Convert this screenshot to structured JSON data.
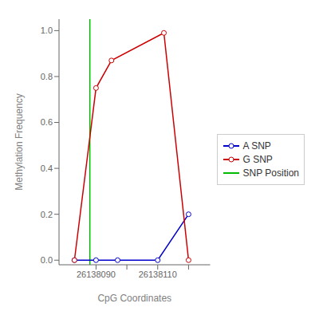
{
  "chart_data": {
    "type": "line",
    "xlabel": "CpG Coordinates",
    "ylabel": "Methylation Frequency",
    "series": [
      {
        "name": "A SNP",
        "color": "#0000cc",
        "marker": "o",
        "x": [
          26138083,
          26138090,
          26138097,
          26138110,
          26138120
        ],
        "values": [
          0.0,
          0.0,
          0.0,
          0.0,
          0.2
        ]
      },
      {
        "name": "G SNP",
        "color": "#cc0000",
        "marker": "o",
        "x": [
          26138083,
          26138090,
          26138095,
          26138112,
          26138120
        ],
        "values": [
          0.0,
          0.75,
          0.87,
          0.99,
          0.0
        ]
      }
    ],
    "vline": {
      "name": "SNP Position",
      "x": 26138088,
      "color": "#00bb00"
    },
    "xlim": [
      26138078,
      26138127
    ],
    "ylim": [
      -0.02,
      1.05
    ],
    "xticks": [
      26138090,
      {
        "value": 26138100,
        "label": null
      },
      26138110,
      {
        "value": 26138120,
        "label": null
      }
    ],
    "yticks": [
      {
        "value": 0.0,
        "label": "0.0"
      },
      0.2,
      0.4,
      0.6,
      0.8,
      {
        "value": 1.0,
        "label": "1.0"
      }
    ],
    "grid": false,
    "legend": "right"
  }
}
